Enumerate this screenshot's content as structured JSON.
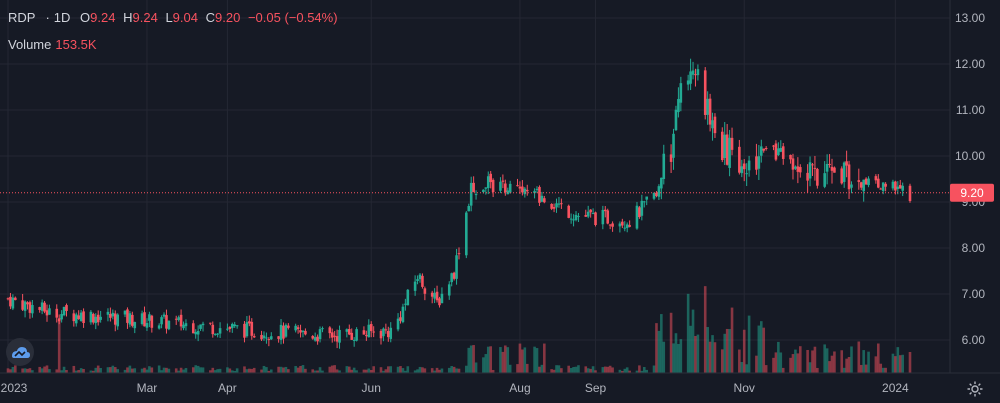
{
  "legend": {
    "symbol": "RDP",
    "interval": "1D",
    "open_label": "O",
    "open": "9.24",
    "high_label": "H",
    "high": "9.24",
    "low_label": "L",
    "low": "9.04",
    "close_label": "C",
    "close": "9.20",
    "change": "−0.05 (−0.54%)"
  },
  "volume": {
    "label": "Volume",
    "value": "153.5K"
  },
  "last_price_badge": "9.20",
  "colors": {
    "background": "#161a25",
    "up": "#22ab94",
    "down": "#f7525f",
    "grid": "#242733",
    "text": "#b2b5be"
  },
  "icons": {
    "logo": "tradingview-cloud-icon",
    "settings": "gear-icon"
  },
  "chart_data": {
    "type": "candlestick",
    "ylim": [
      5.5,
      13.0
    ],
    "y_ticks": [
      "13.00",
      "12.00",
      "11.00",
      "10.00",
      "9.00",
      "8.00",
      "7.00",
      "6.00"
    ],
    "x_ticks": [
      "2023",
      "Mar",
      "Apr",
      "Jun",
      "Aug",
      "Sep",
      "Nov",
      "2024"
    ],
    "last_price": 9.2,
    "close_path": [
      {
        "x": "2023-01-03",
        "y": 6.9
      },
      {
        "x": "2023-01-20",
        "y": 6.6
      },
      {
        "x": "2023-02-15",
        "y": 6.5
      },
      {
        "x": "2023-03-15",
        "y": 6.35
      },
      {
        "x": "2023-04-15",
        "y": 6.2
      },
      {
        "x": "2023-05-15",
        "y": 6.1
      },
      {
        "x": "2023-06-10",
        "y": 6.2
      },
      {
        "x": "2023-06-20",
        "y": 7.4
      },
      {
        "x": "2023-06-28",
        "y": 6.8
      },
      {
        "x": "2023-07-05",
        "y": 7.5
      },
      {
        "x": "2023-07-12",
        "y": 9.3
      },
      {
        "x": "2023-07-20",
        "y": 9.4
      },
      {
        "x": "2023-08-10",
        "y": 9.1
      },
      {
        "x": "2023-08-25",
        "y": 8.7
      },
      {
        "x": "2023-09-15",
        "y": 8.6
      },
      {
        "x": "2023-09-25",
        "y": 9.1
      },
      {
        "x": "2023-10-02",
        "y": 10.2
      },
      {
        "x": "2023-10-06",
        "y": 11.8
      },
      {
        "x": "2023-10-12",
        "y": 12.0
      },
      {
        "x": "2023-10-20",
        "y": 10.3
      },
      {
        "x": "2023-11-01",
        "y": 9.9
      },
      {
        "x": "2023-11-15",
        "y": 10.0
      },
      {
        "x": "2023-12-01",
        "y": 9.5
      },
      {
        "x": "2023-12-15",
        "y": 9.6
      },
      {
        "x": "2024-01-05",
        "y": 9.2
      }
    ]
  }
}
